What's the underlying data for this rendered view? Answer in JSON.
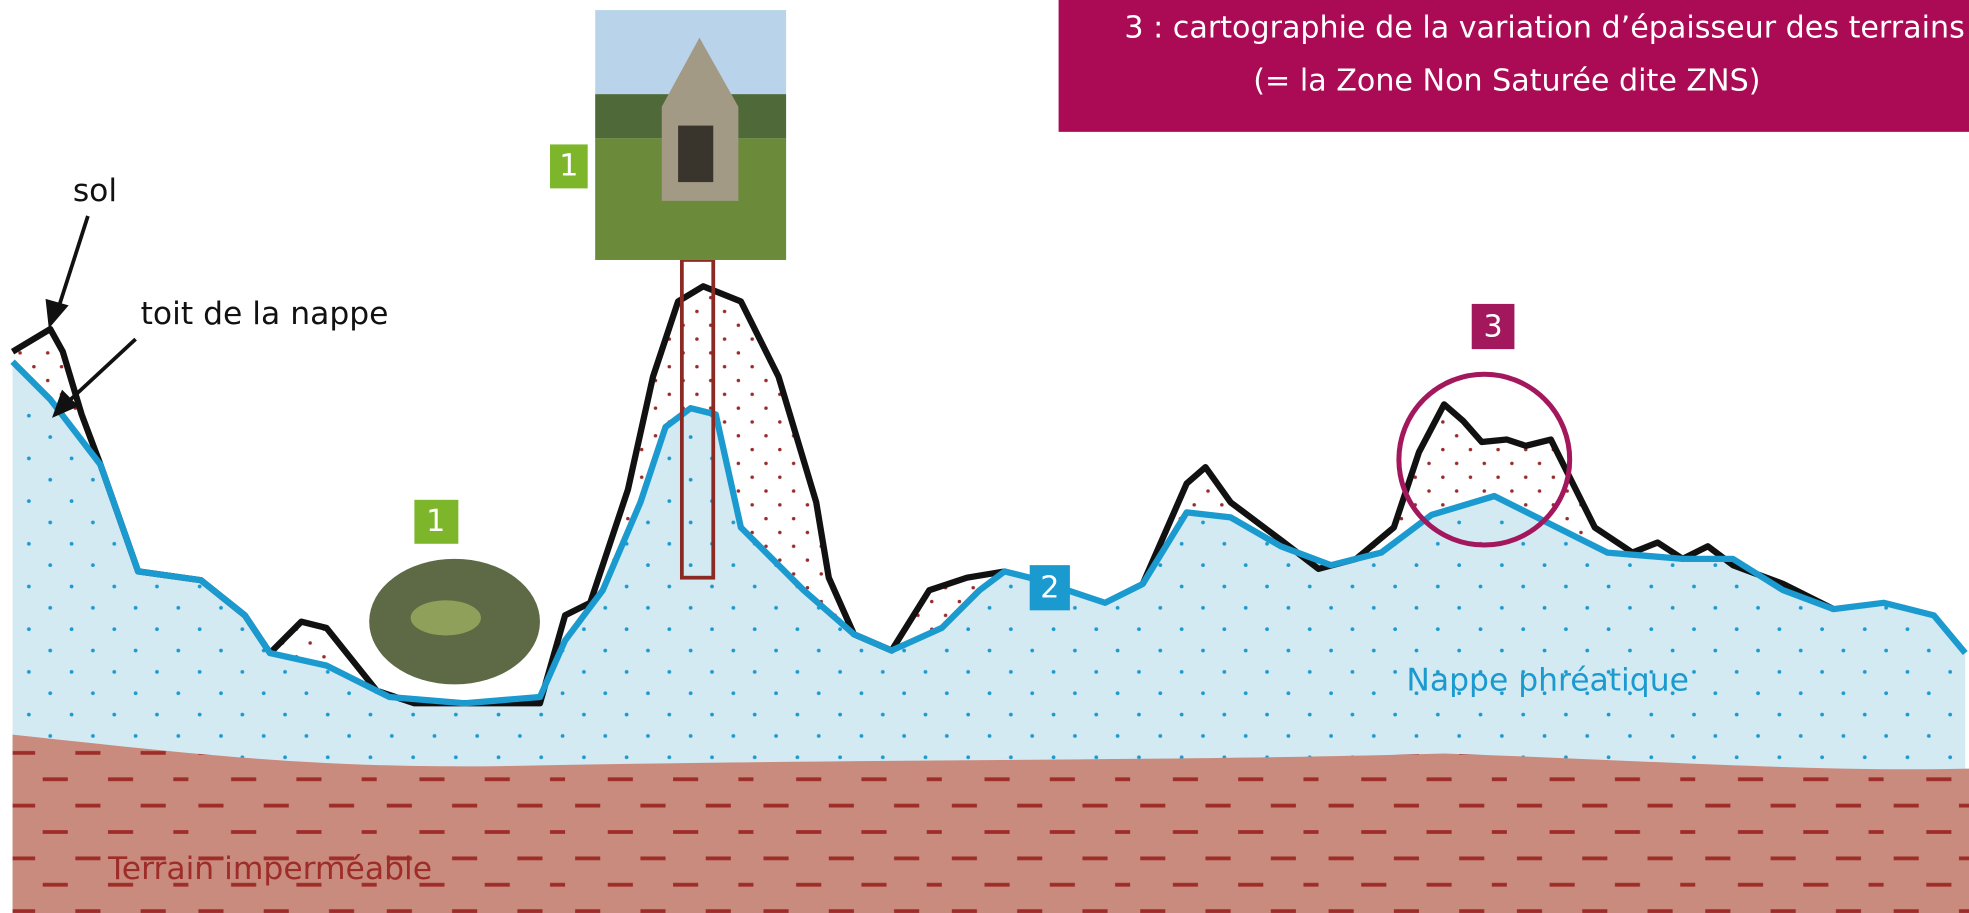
{
  "title": {
    "lines": [
      "3 : cartographie de la variation d’épaisseur des terrains",
      "(= la Zone Non Saturée dite ZNS)"
    ]
  },
  "labels": {
    "sol": "sol",
    "toit": "toit de la nappe",
    "nappe": "Nappe phréatique",
    "terrain": "Terrain imperméable"
  },
  "markers": [
    "1",
    "1",
    "2",
    "3"
  ]
}
